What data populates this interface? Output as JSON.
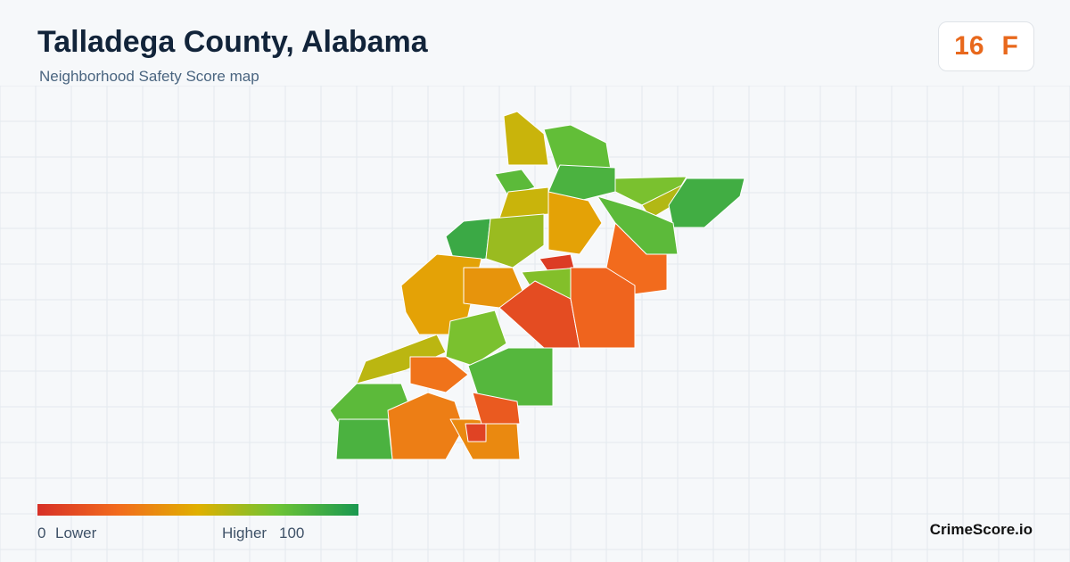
{
  "header": {
    "title": "Talladega County, Alabama",
    "subtitle": "Neighborhood Safety Score map"
  },
  "score": {
    "value": 16,
    "grade": "F"
  },
  "legend": {
    "min": 0,
    "low_label": "Lower",
    "high_label": "Higher",
    "max": 100,
    "colors": [
      "#d73027",
      "#f26b1d",
      "#e0b000",
      "#6cc335",
      "#1a9850"
    ]
  },
  "regions": [
    {
      "score": 55
    },
    {
      "score": 78
    },
    {
      "score": 85
    },
    {
      "score": 80
    },
    {
      "score": 55
    },
    {
      "score": 45
    },
    {
      "score": 72
    },
    {
      "score": 60
    },
    {
      "score": 88
    },
    {
      "score": 80
    },
    {
      "score": 25
    },
    {
      "score": 90
    },
    {
      "score": 65
    },
    {
      "score": 45
    },
    {
      "score": 40
    },
    {
      "score": 5
    },
    {
      "score": 70
    },
    {
      "score": 12
    },
    {
      "score": 22
    },
    {
      "score": 72
    },
    {
      "score": 82
    },
    {
      "score": 58
    },
    {
      "score": 28
    },
    {
      "score": 80
    },
    {
      "score": 32
    },
    {
      "score": 36
    },
    {
      "score": 18
    },
    {
      "score": 8
    },
    {
      "score": 85
    }
  ],
  "brand": "CrimeScore.io"
}
